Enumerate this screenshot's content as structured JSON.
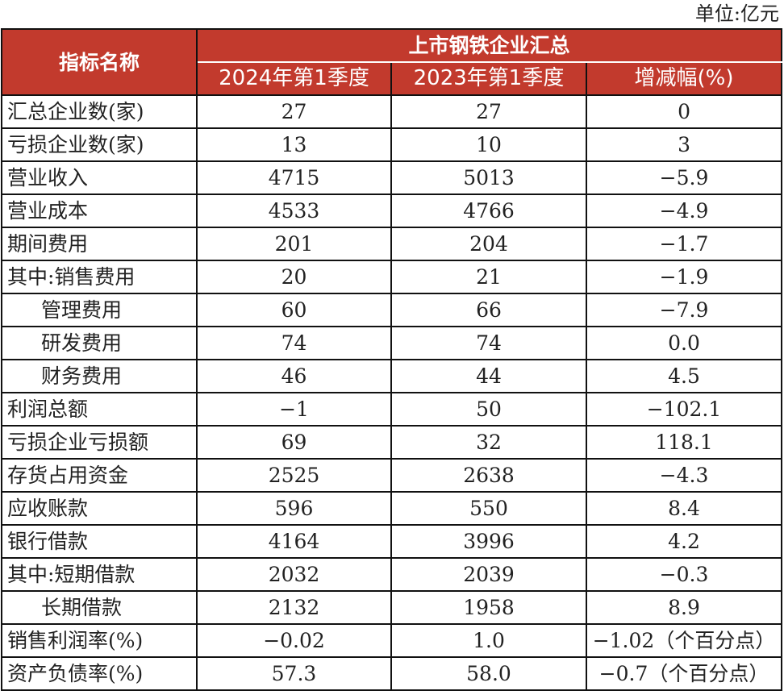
{
  "unit_label": "单位:亿元",
  "header": {
    "name_col": "指标名称",
    "group": "上市钢铁企业汇总",
    "cols": [
      "2024年第1季度",
      "2023年第1季度",
      "增减幅(%)"
    ]
  },
  "colors": {
    "header_bg": "#c23a2d",
    "header_text": "#ffffff"
  },
  "rows": [
    {
      "name": "汇总企业数(家)",
      "indent": false,
      "v2024": "27",
      "v2023": "27",
      "change": "0"
    },
    {
      "name": "亏损企业数(家)",
      "indent": false,
      "v2024": "13",
      "v2023": "10",
      "change": "3"
    },
    {
      "name": "营业收入",
      "indent": false,
      "v2024": "4715",
      "v2023": "5013",
      "change": "−5.9"
    },
    {
      "name": "营业成本",
      "indent": false,
      "v2024": "4533",
      "v2023": "4766",
      "change": "−4.9"
    },
    {
      "name": "期间费用",
      "indent": false,
      "v2024": "201",
      "v2023": "204",
      "change": "−1.7"
    },
    {
      "name": "其中:销售费用",
      "indent": false,
      "v2024": "20",
      "v2023": "21",
      "change": "−1.9"
    },
    {
      "name": "管理费用",
      "indent": true,
      "v2024": "60",
      "v2023": "66",
      "change": "−7.9"
    },
    {
      "name": "研发费用",
      "indent": true,
      "v2024": "74",
      "v2023": "74",
      "change": "0.0"
    },
    {
      "name": "财务费用",
      "indent": true,
      "v2024": "46",
      "v2023": "44",
      "change": "4.5"
    },
    {
      "name": "利润总额",
      "indent": false,
      "v2024": "−1",
      "v2023": "50",
      "change": "−102.1"
    },
    {
      "name": "亏损企业亏损额",
      "indent": false,
      "v2024": "69",
      "v2023": "32",
      "change": "118.1"
    },
    {
      "name": "存货占用资金",
      "indent": false,
      "v2024": "2525",
      "v2023": "2638",
      "change": "−4.3"
    },
    {
      "name": "应收账款",
      "indent": false,
      "v2024": "596",
      "v2023": "550",
      "change": "8.4"
    },
    {
      "name": "银行借款",
      "indent": false,
      "v2024": "4164",
      "v2023": "3996",
      "change": "4.2"
    },
    {
      "name": "其中:短期借款",
      "indent": false,
      "v2024": "2032",
      "v2023": "2039",
      "change": "−0.3"
    },
    {
      "name": "长期借款",
      "indent": true,
      "v2024": "2132",
      "v2023": "1958",
      "change": "8.9"
    },
    {
      "name": "销售利润率(%)",
      "indent": false,
      "v2024": "−0.02",
      "v2023": "1.0",
      "change": "−1.02（个百分点）"
    },
    {
      "name": "资产负债率(%)",
      "indent": false,
      "v2024": "57.3",
      "v2023": "58.0",
      "change": "−0.7（个百分点）"
    }
  ]
}
